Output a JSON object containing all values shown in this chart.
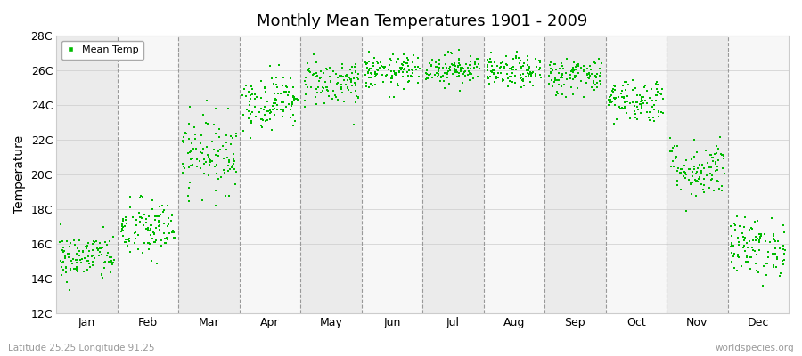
{
  "title": "Monthly Mean Temperatures 1901 - 2009",
  "ylabel": "Temperature",
  "subtitle": "Latitude 25.25 Longitude 91.25",
  "watermark": "worldspecies.org",
  "legend_label": "Mean Temp",
  "marker_color": "#00BB00",
  "bg_color": "#ffffff",
  "band_color_odd": "#ebebeb",
  "band_color_even": "#f7f7f7",
  "ylim": [
    12,
    28
  ],
  "yticks": [
    12,
    14,
    16,
    18,
    20,
    22,
    24,
    26,
    28
  ],
  "ytick_labels": [
    "12C",
    "14C",
    "16C",
    "18C",
    "20C",
    "22C",
    "24C",
    "26C",
    "28C"
  ],
  "months": [
    "Jan",
    "Feb",
    "Mar",
    "Apr",
    "May",
    "Jun",
    "Jul",
    "Aug",
    "Sep",
    "Oct",
    "Nov",
    "Dec"
  ],
  "monthly_means": [
    15.2,
    16.8,
    21.2,
    24.2,
    25.3,
    25.9,
    26.1,
    25.9,
    25.7,
    24.3,
    20.3,
    15.8
  ],
  "monthly_stds": [
    0.7,
    0.9,
    1.1,
    0.8,
    0.7,
    0.5,
    0.45,
    0.45,
    0.55,
    0.65,
    0.85,
    0.85
  ],
  "n_years": 109,
  "seed": 42
}
